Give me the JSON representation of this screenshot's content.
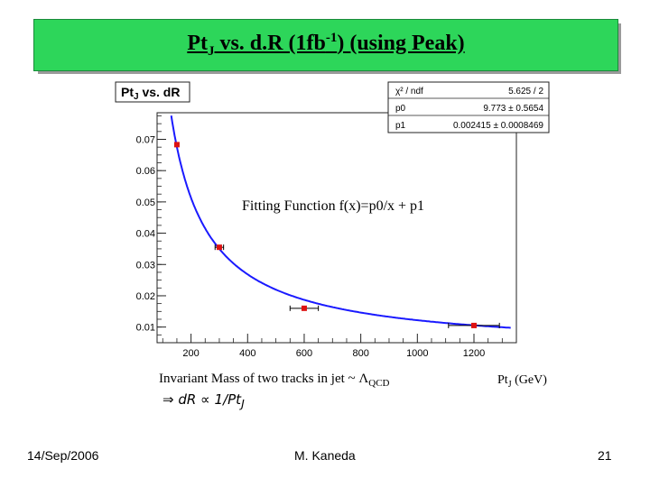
{
  "slide": {
    "title_main": "Pt",
    "title_sub": "J",
    "title_mid": " vs. d.R (1fb",
    "title_sup": "-1",
    "title_end": ") (using Peak)",
    "date": "14/Sep/2006",
    "author": "M. Kaneda",
    "page": "21",
    "note_line1_main": "Invariant Mass of two tracks in jet ~ Λ",
    "note_line1_sub": "QCD",
    "note_line2": "⇒ dR ∝ 1/Pt",
    "note_line2_sub": "J",
    "xunit_main": "Pt",
    "xunit_sub": "J",
    "xunit_end": " (GeV)"
  },
  "chart_data": {
    "type": "scatter",
    "title": "Pt",
    "title_sub": "J",
    "title_end": " vs. dR",
    "fit_label": "Fitting Function f(x)=p0/x + p1",
    "xlim": [
      80,
      1350
    ],
    "ylim": [
      0.005,
      0.0785
    ],
    "x_ticks": [
      200,
      400,
      600,
      800,
      1000,
      1200
    ],
    "y_ticks": [
      0.01,
      0.02,
      0.03,
      0.04,
      0.05,
      0.06,
      0.07
    ],
    "y_tick_labels": [
      "0.01",
      "0.02",
      "0.03",
      "0.04",
      "0.05",
      "0.06",
      "0.07"
    ],
    "points": [
      {
        "x": 150,
        "y": 0.0683,
        "xerr": 0
      },
      {
        "x": 300,
        "y": 0.0355,
        "xerr": 15
      },
      {
        "x": 600,
        "y": 0.016,
        "xerr": 50
      },
      {
        "x": 1200,
        "y": 0.0105,
        "xerr": 90
      }
    ],
    "fit": {
      "p0": 9.773,
      "p1": 0.002415,
      "x_from": 130,
      "x_to": 1330
    },
    "stats": [
      {
        "label": "χ² / ndf",
        "value": "5.625 / 2"
      },
      {
        "label": "p0",
        "value": "9.773 ± 0.5654"
      },
      {
        "label": "p1",
        "value": "0.002415 ± 0.0008469"
      }
    ],
    "colors": {
      "curve": "#1a1aff",
      "marker": "#dd1111",
      "error_bar": "#000000"
    }
  }
}
